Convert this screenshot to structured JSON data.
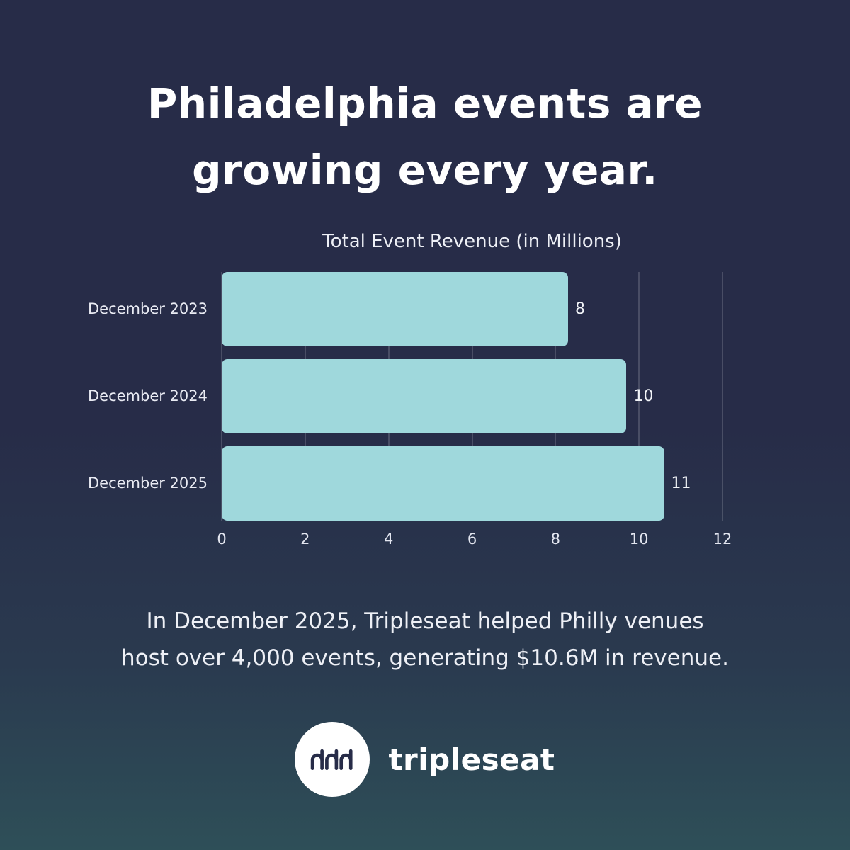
{
  "colors": {
    "background_top": "#272c48",
    "background_bottom": "#2e4f58",
    "bar": "#9fd8dc",
    "text": "#ffffff"
  },
  "heading": {
    "line1": "Philadelphia events are",
    "line2": "growing every year."
  },
  "chart_data": {
    "type": "bar",
    "orientation": "horizontal",
    "title": "Total Event Revenue (in Millions)",
    "categories": [
      "December 2023",
      "December 2024",
      "December 2025"
    ],
    "values": [
      8.3,
      9.7,
      10.6
    ],
    "value_labels": [
      "8",
      "10",
      "11"
    ],
    "xlabel": "",
    "ylabel": "",
    "xlim": [
      0,
      12
    ],
    "x_ticks": [
      "0",
      "2",
      "4",
      "6",
      "8",
      "10",
      "12"
    ],
    "grid": true,
    "legend": false,
    "bar_color": "#9fd8dc"
  },
  "caption": {
    "line1": "In December 2025, Tripleseat helped Philly venues",
    "line2": "host over 4,000 events, generating $10.6M in revenue."
  },
  "logo": {
    "wordmark": "tripleseat",
    "icon": "tripleseat-mark"
  }
}
